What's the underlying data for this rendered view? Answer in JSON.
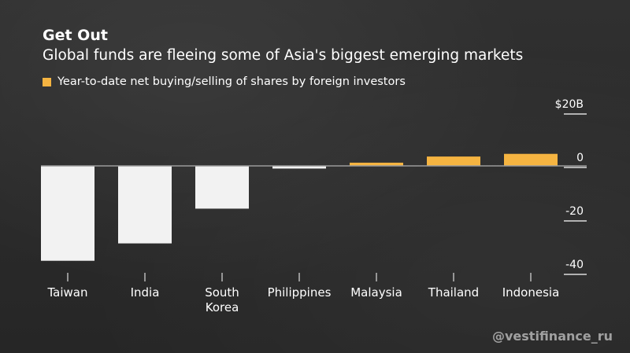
{
  "title": "Get Out",
  "subtitle": "Global funds are fleeing some of Asia's biggest emerging markets",
  "legend_label": "Year-to-date net buying/selling of shares by foreign investors",
  "watermark": "@vestifinance_ru",
  "colors": {
    "negative": "#f2f2f2",
    "positive": "#f5b441",
    "zero_line": "#9a9a9a"
  },
  "chart_data": {
    "type": "bar",
    "categories": [
      "Taiwan",
      "India",
      "South\nKorea",
      "Philippines",
      "Malaysia",
      "Thailand",
      "Indonesia"
    ],
    "values": [
      -35.5,
      -29,
      -16,
      -1,
      1.2,
      3.5,
      4.5
    ],
    "ylim": [
      -40,
      20
    ],
    "yticks": [
      {
        "value": 20,
        "label": "$20B"
      },
      {
        "value": 0,
        "label": "0"
      },
      {
        "value": -20,
        "label": "-20"
      },
      {
        "value": -40,
        "label": "-40"
      }
    ],
    "xlabel": "",
    "ylabel": ""
  }
}
